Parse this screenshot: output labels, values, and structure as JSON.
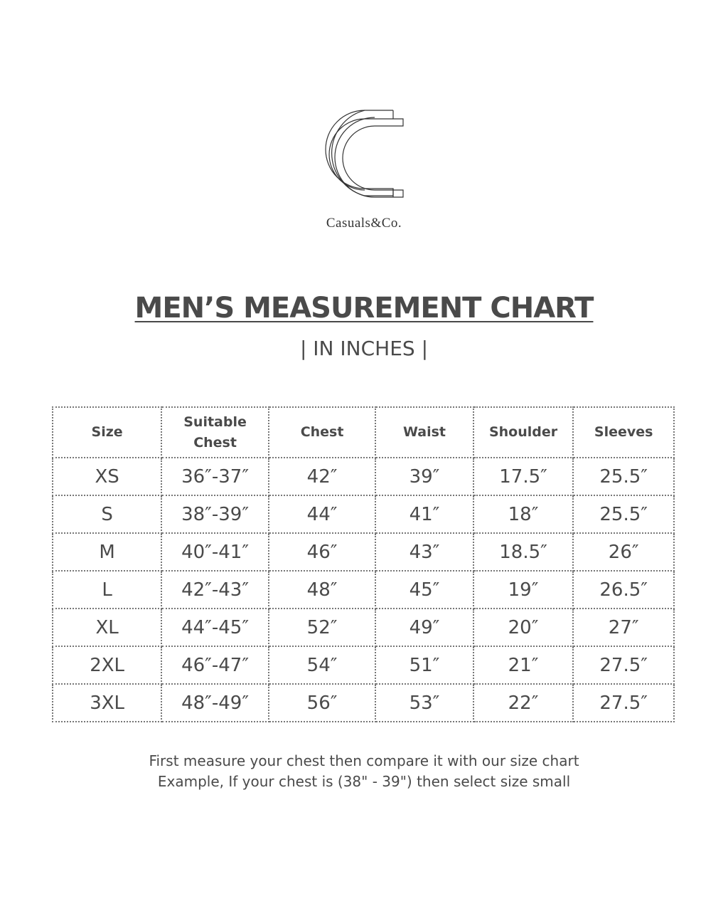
{
  "brand": {
    "name": "Casuals&Co."
  },
  "header": {
    "title": "MEN’S MEASUREMENT CHART",
    "subtitle": "| IN INCHES |"
  },
  "table": {
    "headers": [
      "Size",
      "Suitable Chest",
      "Chest",
      "Waist",
      "Shoulder",
      "Sleeves"
    ],
    "rows": [
      [
        "XS",
        "36″-37″",
        "42″",
        "39″",
        "17.5″",
        "25.5″"
      ],
      [
        "S",
        "38″-39″",
        "44″",
        "41″",
        "18″",
        "25.5″"
      ],
      [
        "M",
        "40″-41″",
        "46″",
        "43″",
        "18.5″",
        "26″"
      ],
      [
        "L",
        "42″-43″",
        "48″",
        "45″",
        "19″",
        "26.5″"
      ],
      [
        "XL",
        "44″-45″",
        "52″",
        "49″",
        "20″",
        "27″"
      ],
      [
        "2XL",
        "46″-47″",
        "54″",
        "51″",
        "21″",
        "27.5″"
      ],
      [
        "3XL",
        "48″-49″",
        "56″",
        "53″",
        "22″",
        "27.5″"
      ]
    ]
  },
  "note": {
    "line1": "First measure your chest then compare it with our size chart",
    "line2": "Example, If your chest is (38\" - 39\") then select size small"
  }
}
